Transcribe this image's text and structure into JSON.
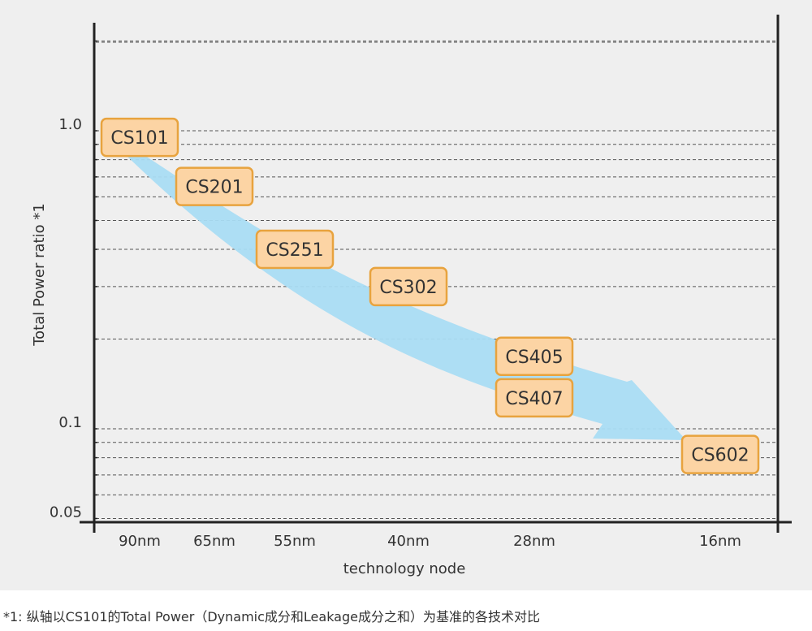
{
  "chart_data": {
    "type": "scatter",
    "xlabel": "technology node",
    "ylabel": "Total Power  ratio *1",
    "y_scale": "log",
    "y_ticks": [
      {
        "value": 1.0,
        "label": "1.0"
      },
      {
        "value": 0.1,
        "label": "0.1"
      },
      {
        "value": 0.05,
        "label": "0.05"
      }
    ],
    "grid": "dashed horizontal",
    "colors": {
      "chip_fill": "#fcd4a4",
      "chip_border": "#e8a33e",
      "trend_arrow": "#a9dcf3",
      "axis": "#222222",
      "grid": "#555555",
      "background": "#efefef"
    },
    "categories": [
      "90nm",
      "65nm",
      "55nm",
      "40nm",
      "28nm",
      "16nm"
    ],
    "points": [
      {
        "name": "CS101",
        "node": "90nm",
        "value": 0.95
      },
      {
        "name": "CS201",
        "node": "65nm",
        "value": 0.65
      },
      {
        "name": "CS251",
        "node": "55nm",
        "value": 0.4
      },
      {
        "name": "CS302",
        "node": "40nm",
        "value": 0.3
      },
      {
        "name": "CS405",
        "node": "28nm",
        "value": 0.175
      },
      {
        "name": "CS407",
        "node": "28nm",
        "value": 0.127
      },
      {
        "name": "CS602",
        "node": "16nm",
        "value": 0.082
      }
    ]
  },
  "footnote": "*1: 纵轴以CS101的Total Power（Dynamic成分和Leakage成分之和）为基准的各技术对比"
}
